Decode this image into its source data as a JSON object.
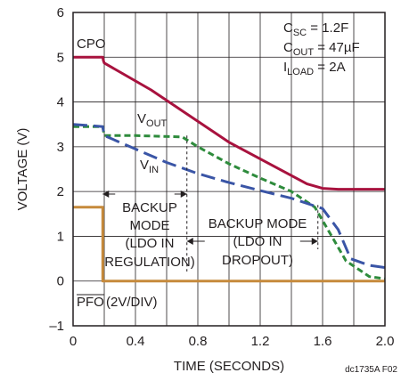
{
  "chart_data": {
    "type": "line",
    "xlabel": "TIME (SECONDS)",
    "ylabel": "VOLTAGE (V)",
    "xlim": [
      0,
      2.0
    ],
    "ylim": [
      -1,
      6
    ],
    "x_ticks": [
      "0",
      "0.4",
      "0.8",
      "1.2",
      "1.6",
      "2.0"
    ],
    "x_tick_values": [
      0,
      0.4,
      0.8,
      1.2,
      1.6,
      2.0
    ],
    "y_ticks": [
      "6",
      "5",
      "4",
      "3",
      "2",
      "1",
      "0",
      "–1"
    ],
    "y_tick_values": [
      6,
      5,
      4,
      3,
      2,
      1,
      0,
      -1
    ],
    "grid": true,
    "series": [
      {
        "name": "CPO",
        "color": "#a8123e",
        "style": "solid",
        "x": [
          0,
          0.19,
          0.195,
          0.2,
          0.5,
          1.0,
          1.5,
          1.6,
          1.7,
          2.0
        ],
        "y": [
          5.0,
          5.0,
          4.92,
          4.87,
          4.27,
          3.1,
          2.17,
          2.07,
          2.05,
          2.05
        ]
      },
      {
        "name": "VOUT",
        "color": "#2e8b3c",
        "style": "dashed",
        "x": [
          0,
          0.19,
          0.2,
          0.4,
          0.7,
          0.8,
          1.0,
          1.2,
          1.4,
          1.55,
          1.65,
          1.75,
          1.9,
          2.0
        ],
        "y": [
          3.45,
          3.45,
          3.25,
          3.25,
          3.22,
          3.0,
          2.62,
          2.3,
          2.0,
          1.65,
          1.05,
          0.45,
          0.1,
          0.05
        ]
      },
      {
        "name": "VIN",
        "color": "#3a55a6",
        "style": "long-dash",
        "x": [
          0,
          0.19,
          0.2,
          0.4,
          0.6,
          0.8,
          1.0,
          1.2,
          1.4,
          1.6,
          1.7,
          1.78,
          1.9,
          2.0
        ],
        "y": [
          3.5,
          3.45,
          3.25,
          2.95,
          2.65,
          2.4,
          2.2,
          2.02,
          1.85,
          1.62,
          1.15,
          0.5,
          0.35,
          0.3
        ]
      },
      {
        "name": "PFO",
        "color": "#c68a3c",
        "style": "solid",
        "x": [
          0,
          0.19,
          0.19,
          2.0
        ],
        "y": [
          1.65,
          1.65,
          0,
          0
        ]
      }
    ],
    "labels": {
      "cpo": "CPO",
      "vout_main": "V",
      "vout_sub": "OUT",
      "vin_main": "V",
      "vin_sub": "IN",
      "pfo": "PFO",
      "pfo_suffix": " (2V/DIV)"
    },
    "conditions": [
      {
        "main": "C",
        "sub": "SC",
        "rest": " = 1.2F"
      },
      {
        "main": "C",
        "sub": "OUT",
        "rest": " = 47µF"
      },
      {
        "main": "I",
        "sub": "LOAD",
        "rest": " = 2A"
      }
    ],
    "annotations": {
      "backup_regulation": [
        "BACKUP",
        "MODE",
        "(LDO IN",
        "REGULATION)"
      ],
      "backup_dropout": [
        "BACKUP MODE",
        "(LDO IN",
        "DROPOUT)"
      ]
    },
    "figure_id": "dc1735A F02"
  }
}
